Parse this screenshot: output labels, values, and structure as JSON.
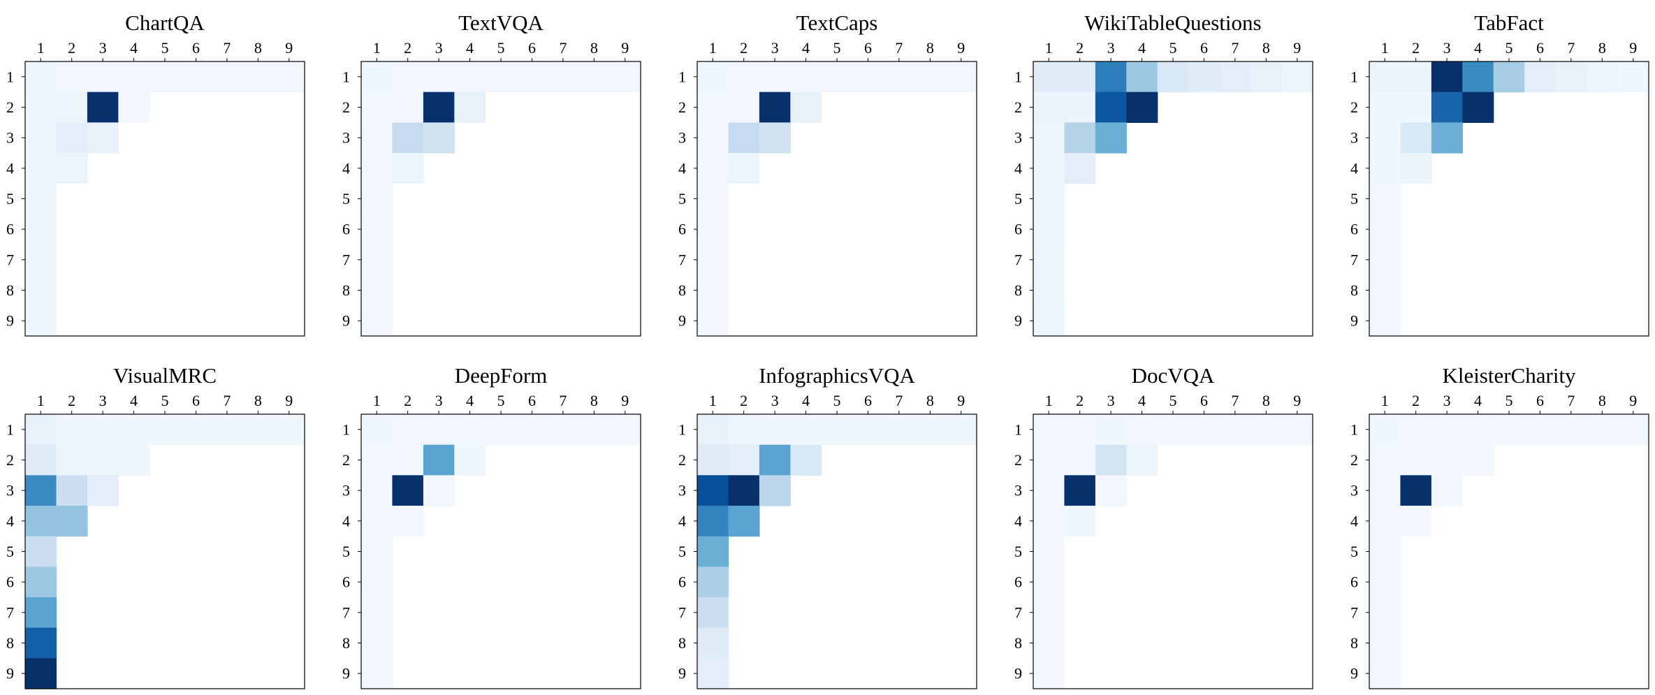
{
  "chart_data": [
    {
      "type": "heatmap",
      "title": "ChartQA",
      "x_ticks": [
        "1",
        "2",
        "3",
        "4",
        "5",
        "6",
        "7",
        "8",
        "9"
      ],
      "y_ticks": [
        "1",
        "2",
        "3",
        "4",
        "5",
        "6",
        "7",
        "8",
        "9"
      ],
      "colormap": "Blues",
      "values": [
        [
          0.05,
          0.03,
          0.03,
          0.03,
          0.03,
          0.03,
          0.03,
          0.03,
          0.03
        ],
        [
          0.04,
          0.05,
          1.0,
          0.03,
          0,
          0,
          0,
          0,
          0
        ],
        [
          0.04,
          0.09,
          0.08,
          0,
          0,
          0,
          0,
          0,
          0
        ],
        [
          0.04,
          0.05,
          0,
          0,
          0,
          0,
          0,
          0,
          0
        ],
        [
          0.04,
          0,
          0,
          0,
          0,
          0,
          0,
          0,
          0
        ],
        [
          0.04,
          0,
          0,
          0,
          0,
          0,
          0,
          0,
          0
        ],
        [
          0.04,
          0,
          0,
          0,
          0,
          0,
          0,
          0,
          0
        ],
        [
          0.04,
          0,
          0,
          0,
          0,
          0,
          0,
          0,
          0
        ],
        [
          0.04,
          0,
          0,
          0,
          0,
          0,
          0,
          0,
          0
        ]
      ]
    },
    {
      "type": "heatmap",
      "title": "TextVQA",
      "x_ticks": [
        "1",
        "2",
        "3",
        "4",
        "5",
        "6",
        "7",
        "8",
        "9"
      ],
      "y_ticks": [
        "1",
        "2",
        "3",
        "4",
        "5",
        "6",
        "7",
        "8",
        "9"
      ],
      "colormap": "Blues",
      "values": [
        [
          0.04,
          0.03,
          0.03,
          0.03,
          0.03,
          0.03,
          0.03,
          0.03,
          0.03
        ],
        [
          0.03,
          0.03,
          1.0,
          0.08,
          0,
          0,
          0,
          0,
          0
        ],
        [
          0.03,
          0.25,
          0.2,
          0,
          0,
          0,
          0,
          0,
          0
        ],
        [
          0.03,
          0.05,
          0,
          0,
          0,
          0,
          0,
          0,
          0
        ],
        [
          0.03,
          0,
          0,
          0,
          0,
          0,
          0,
          0,
          0
        ],
        [
          0.03,
          0,
          0,
          0,
          0,
          0,
          0,
          0,
          0
        ],
        [
          0.03,
          0,
          0,
          0,
          0,
          0,
          0,
          0,
          0
        ],
        [
          0.03,
          0,
          0,
          0,
          0,
          0,
          0,
          0,
          0
        ],
        [
          0.03,
          0,
          0,
          0,
          0,
          0,
          0,
          0,
          0
        ]
      ]
    },
    {
      "type": "heatmap",
      "title": "TextCaps",
      "x_ticks": [
        "1",
        "2",
        "3",
        "4",
        "5",
        "6",
        "7",
        "8",
        "9"
      ],
      "y_ticks": [
        "1",
        "2",
        "3",
        "4",
        "5",
        "6",
        "7",
        "8",
        "9"
      ],
      "colormap": "Blues",
      "values": [
        [
          0.04,
          0.03,
          0.03,
          0.03,
          0.03,
          0.03,
          0.03,
          0.03,
          0.03
        ],
        [
          0.03,
          0.03,
          1.0,
          0.08,
          0,
          0,
          0,
          0,
          0
        ],
        [
          0.03,
          0.25,
          0.2,
          0,
          0,
          0,
          0,
          0,
          0
        ],
        [
          0.03,
          0.05,
          0,
          0,
          0,
          0,
          0,
          0,
          0
        ],
        [
          0.03,
          0,
          0,
          0,
          0,
          0,
          0,
          0,
          0
        ],
        [
          0.03,
          0,
          0,
          0,
          0,
          0,
          0,
          0,
          0
        ],
        [
          0.03,
          0,
          0,
          0,
          0,
          0,
          0,
          0,
          0
        ],
        [
          0.03,
          0,
          0,
          0,
          0,
          0,
          0,
          0,
          0
        ],
        [
          0.03,
          0,
          0,
          0,
          0,
          0,
          0,
          0,
          0
        ]
      ]
    },
    {
      "type": "heatmap",
      "title": "WikiTableQuestions",
      "x_ticks": [
        "1",
        "2",
        "3",
        "4",
        "5",
        "6",
        "7",
        "8",
        "9"
      ],
      "y_ticks": [
        "1",
        "2",
        "3",
        "4",
        "5",
        "6",
        "7",
        "8",
        "9"
      ],
      "colormap": "Blues",
      "values": [
        [
          0.12,
          0.12,
          0.7,
          0.38,
          0.15,
          0.12,
          0.1,
          0.08,
          0.05
        ],
        [
          0.06,
          0.06,
          0.85,
          1.0,
          0,
          0,
          0,
          0,
          0
        ],
        [
          0.05,
          0.3,
          0.5,
          0,
          0,
          0,
          0,
          0,
          0
        ],
        [
          0.05,
          0.1,
          0,
          0,
          0,
          0,
          0,
          0,
          0
        ],
        [
          0.05,
          0,
          0,
          0,
          0,
          0,
          0,
          0,
          0
        ],
        [
          0.05,
          0,
          0,
          0,
          0,
          0,
          0,
          0,
          0
        ],
        [
          0.04,
          0,
          0,
          0,
          0,
          0,
          0,
          0,
          0
        ],
        [
          0.04,
          0,
          0,
          0,
          0,
          0,
          0,
          0,
          0
        ],
        [
          0.05,
          0,
          0,
          0,
          0,
          0,
          0,
          0,
          0
        ]
      ]
    },
    {
      "type": "heatmap",
      "title": "TabFact",
      "x_ticks": [
        "1",
        "2",
        "3",
        "4",
        "5",
        "6",
        "7",
        "8",
        "9"
      ],
      "y_ticks": [
        "1",
        "2",
        "3",
        "4",
        "5",
        "6",
        "7",
        "8",
        "9"
      ],
      "colormap": "Blues",
      "values": [
        [
          0.06,
          0.06,
          1.0,
          0.65,
          0.35,
          0.1,
          0.08,
          0.05,
          0.04
        ],
        [
          0.04,
          0.04,
          0.8,
          1.0,
          0,
          0,
          0,
          0,
          0
        ],
        [
          0.04,
          0.15,
          0.5,
          0,
          0,
          0,
          0,
          0,
          0
        ],
        [
          0.04,
          0.06,
          0,
          0,
          0,
          0,
          0,
          0,
          0
        ],
        [
          0.03,
          0,
          0,
          0,
          0,
          0,
          0,
          0,
          0
        ],
        [
          0.03,
          0,
          0,
          0,
          0,
          0,
          0,
          0,
          0
        ],
        [
          0.03,
          0,
          0,
          0,
          0,
          0,
          0,
          0,
          0
        ],
        [
          0.03,
          0,
          0,
          0,
          0,
          0,
          0,
          0,
          0
        ],
        [
          0.03,
          0,
          0,
          0,
          0,
          0,
          0,
          0,
          0
        ]
      ]
    },
    {
      "type": "heatmap",
      "title": "VisualMRC",
      "x_ticks": [
        "1",
        "2",
        "3",
        "4",
        "5",
        "6",
        "7",
        "8",
        "9"
      ],
      "y_ticks": [
        "1",
        "2",
        "3",
        "4",
        "5",
        "6",
        "7",
        "8",
        "9"
      ],
      "colormap": "Blues",
      "values": [
        [
          0.08,
          0.04,
          0.04,
          0.04,
          0.04,
          0.04,
          0.04,
          0.04,
          0.04
        ],
        [
          0.12,
          0.05,
          0.05,
          0.04,
          0,
          0,
          0,
          0,
          0
        ],
        [
          0.65,
          0.22,
          0.1,
          0,
          0,
          0,
          0,
          0,
          0
        ],
        [
          0.4,
          0.4,
          0,
          0,
          0,
          0,
          0,
          0,
          0
        ],
        [
          0.22,
          0,
          0,
          0,
          0,
          0,
          0,
          0,
          0
        ],
        [
          0.38,
          0,
          0,
          0,
          0,
          0,
          0,
          0,
          0
        ],
        [
          0.55,
          0,
          0,
          0,
          0,
          0,
          0,
          0,
          0
        ],
        [
          0.82,
          0,
          0,
          0,
          0,
          0,
          0,
          0,
          0
        ],
        [
          1.0,
          0,
          0,
          0,
          0,
          0,
          0,
          0,
          0
        ]
      ]
    },
    {
      "type": "heatmap",
      "title": "DeepForm",
      "x_ticks": [
        "1",
        "2",
        "3",
        "4",
        "5",
        "6",
        "7",
        "8",
        "9"
      ],
      "y_ticks": [
        "1",
        "2",
        "3",
        "4",
        "5",
        "6",
        "7",
        "8",
        "9"
      ],
      "colormap": "Blues",
      "values": [
        [
          0.04,
          0.03,
          0.03,
          0.03,
          0.03,
          0.03,
          0.03,
          0.03,
          0.03
        ],
        [
          0.03,
          0.03,
          0.55,
          0.04,
          0,
          0,
          0,
          0,
          0
        ],
        [
          0.03,
          1.0,
          0.03,
          0,
          0,
          0,
          0,
          0,
          0
        ],
        [
          0.03,
          0.03,
          0,
          0,
          0,
          0,
          0,
          0,
          0
        ],
        [
          0.03,
          0,
          0,
          0,
          0,
          0,
          0,
          0,
          0
        ],
        [
          0.03,
          0,
          0,
          0,
          0,
          0,
          0,
          0,
          0
        ],
        [
          0.03,
          0,
          0,
          0,
          0,
          0,
          0,
          0,
          0
        ],
        [
          0.03,
          0,
          0,
          0,
          0,
          0,
          0,
          0,
          0
        ],
        [
          0.03,
          0,
          0,
          0,
          0,
          0,
          0,
          0,
          0
        ]
      ]
    },
    {
      "type": "heatmap",
      "title": "InfographicsVQA",
      "x_ticks": [
        "1",
        "2",
        "3",
        "4",
        "5",
        "6",
        "7",
        "8",
        "9"
      ],
      "y_ticks": [
        "1",
        "2",
        "3",
        "4",
        "5",
        "6",
        "7",
        "8",
        "9"
      ],
      "colormap": "Blues",
      "values": [
        [
          0.08,
          0.05,
          0.04,
          0.04,
          0.04,
          0.04,
          0.04,
          0.04,
          0.04
        ],
        [
          0.12,
          0.1,
          0.55,
          0.15,
          0,
          0,
          0,
          0,
          0
        ],
        [
          0.88,
          1.0,
          0.28,
          0,
          0,
          0,
          0,
          0,
          0
        ],
        [
          0.68,
          0.55,
          0,
          0,
          0,
          0,
          0,
          0,
          0
        ],
        [
          0.5,
          0,
          0,
          0,
          0,
          0,
          0,
          0,
          0
        ],
        [
          0.33,
          0,
          0,
          0,
          0,
          0,
          0,
          0,
          0
        ],
        [
          0.22,
          0,
          0,
          0,
          0,
          0,
          0,
          0,
          0
        ],
        [
          0.12,
          0,
          0,
          0,
          0,
          0,
          0,
          0,
          0
        ],
        [
          0.1,
          0,
          0,
          0,
          0,
          0,
          0,
          0,
          0
        ]
      ]
    },
    {
      "type": "heatmap",
      "title": "DocVQA",
      "x_ticks": [
        "1",
        "2",
        "3",
        "4",
        "5",
        "6",
        "7",
        "8",
        "9"
      ],
      "y_ticks": [
        "1",
        "2",
        "3",
        "4",
        "5",
        "6",
        "7",
        "8",
        "9"
      ],
      "colormap": "Blues",
      "values": [
        [
          0.03,
          0.03,
          0.04,
          0.03,
          0.03,
          0.03,
          0.03,
          0.03,
          0.03
        ],
        [
          0.03,
          0.03,
          0.18,
          0.05,
          0,
          0,
          0,
          0,
          0
        ],
        [
          0.03,
          1.0,
          0.03,
          0,
          0,
          0,
          0,
          0,
          0
        ],
        [
          0.03,
          0.04,
          0,
          0,
          0,
          0,
          0,
          0,
          0
        ],
        [
          0.03,
          0,
          0,
          0,
          0,
          0,
          0,
          0,
          0
        ],
        [
          0.03,
          0,
          0,
          0,
          0,
          0,
          0,
          0,
          0
        ],
        [
          0.03,
          0,
          0,
          0,
          0,
          0,
          0,
          0,
          0
        ],
        [
          0.03,
          0,
          0,
          0,
          0,
          0,
          0,
          0,
          0
        ],
        [
          0.03,
          0,
          0,
          0,
          0,
          0,
          0,
          0,
          0
        ]
      ]
    },
    {
      "type": "heatmap",
      "title": "KleisterCharity",
      "x_ticks": [
        "1",
        "2",
        "3",
        "4",
        "5",
        "6",
        "7",
        "8",
        "9"
      ],
      "y_ticks": [
        "1",
        "2",
        "3",
        "4",
        "5",
        "6",
        "7",
        "8",
        "9"
      ],
      "colormap": "Blues",
      "values": [
        [
          0.04,
          0.03,
          0.03,
          0.03,
          0.03,
          0.03,
          0.03,
          0.03,
          0.03
        ],
        [
          0.03,
          0.03,
          0.03,
          0.03,
          0,
          0,
          0,
          0,
          0
        ],
        [
          0.03,
          1.0,
          0.02,
          0,
          0,
          0,
          0,
          0,
          0
        ],
        [
          0.03,
          0.02,
          0,
          0,
          0,
          0,
          0,
          0,
          0
        ],
        [
          0.03,
          0,
          0,
          0,
          0,
          0,
          0,
          0,
          0
        ],
        [
          0.03,
          0,
          0,
          0,
          0,
          0,
          0,
          0,
          0
        ],
        [
          0.03,
          0,
          0,
          0,
          0,
          0,
          0,
          0,
          0
        ],
        [
          0.03,
          0,
          0,
          0,
          0,
          0,
          0,
          0,
          0
        ],
        [
          0.03,
          0,
          0,
          0,
          0,
          0,
          0,
          0,
          0
        ]
      ]
    }
  ]
}
